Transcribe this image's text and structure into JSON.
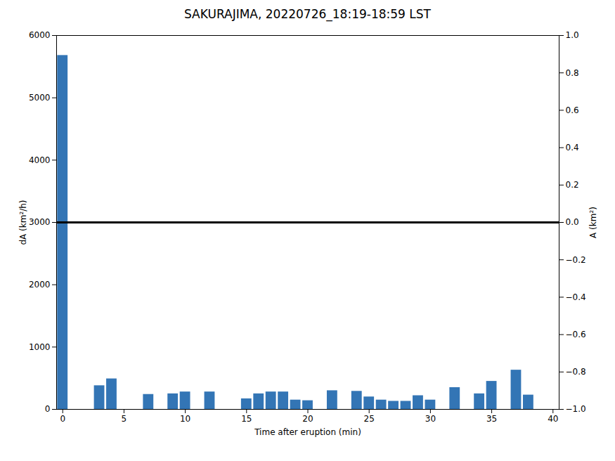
{
  "chart_data": {
    "type": "bar",
    "title": "SAKURAJIMA, 20220726_18:19-18:59 LST",
    "xlabel": "Time after eruption (min)",
    "ylabel": "dA (km²/h)",
    "y2label": "A (km²)",
    "x": [
      0,
      1,
      2,
      3,
      4,
      5,
      6,
      7,
      8,
      9,
      10,
      11,
      12,
      13,
      14,
      15,
      16,
      17,
      18,
      19,
      20,
      21,
      22,
      23,
      24,
      25,
      26,
      27,
      28,
      29,
      30,
      31,
      32,
      33,
      34,
      35,
      36,
      37,
      38,
      39
    ],
    "values": [
      5680,
      0,
      0,
      380,
      490,
      0,
      0,
      240,
      0,
      250,
      280,
      0,
      280,
      0,
      0,
      170,
      250,
      280,
      280,
      150,
      140,
      0,
      300,
      0,
      290,
      200,
      150,
      130,
      130,
      220,
      150,
      0,
      350,
      0,
      250,
      450,
      0,
      630,
      230,
      0
    ],
    "color": "#3375b5",
    "hlines": [
      3000
    ],
    "xlim": [
      -0.5,
      40.5
    ],
    "xticks": [
      0,
      5,
      10,
      15,
      20,
      25,
      30,
      35,
      40
    ],
    "ylim": [
      0,
      6000
    ],
    "yticks": [
      0,
      1000,
      2000,
      3000,
      4000,
      5000,
      6000
    ],
    "y2lim": [
      -1,
      1
    ],
    "y2ticks": [
      {
        "value": -1,
        "label": "−1.0"
      },
      {
        "value": -0.8,
        "label": "−0.8"
      },
      {
        "value": -0.6,
        "label": "−0.6"
      },
      {
        "value": -0.4,
        "label": "−0.4"
      },
      {
        "value": -0.2,
        "label": "−0.2"
      },
      {
        "value": 0,
        "label": "0.0"
      },
      {
        "value": 0.2,
        "label": "0.2"
      },
      {
        "value": 0.4,
        "label": "0.4"
      },
      {
        "value": 0.6,
        "label": "0.6"
      },
      {
        "value": 0.8,
        "label": "0.8"
      },
      {
        "value": 1,
        "label": "1.0"
      }
    ],
    "grid": false
  }
}
